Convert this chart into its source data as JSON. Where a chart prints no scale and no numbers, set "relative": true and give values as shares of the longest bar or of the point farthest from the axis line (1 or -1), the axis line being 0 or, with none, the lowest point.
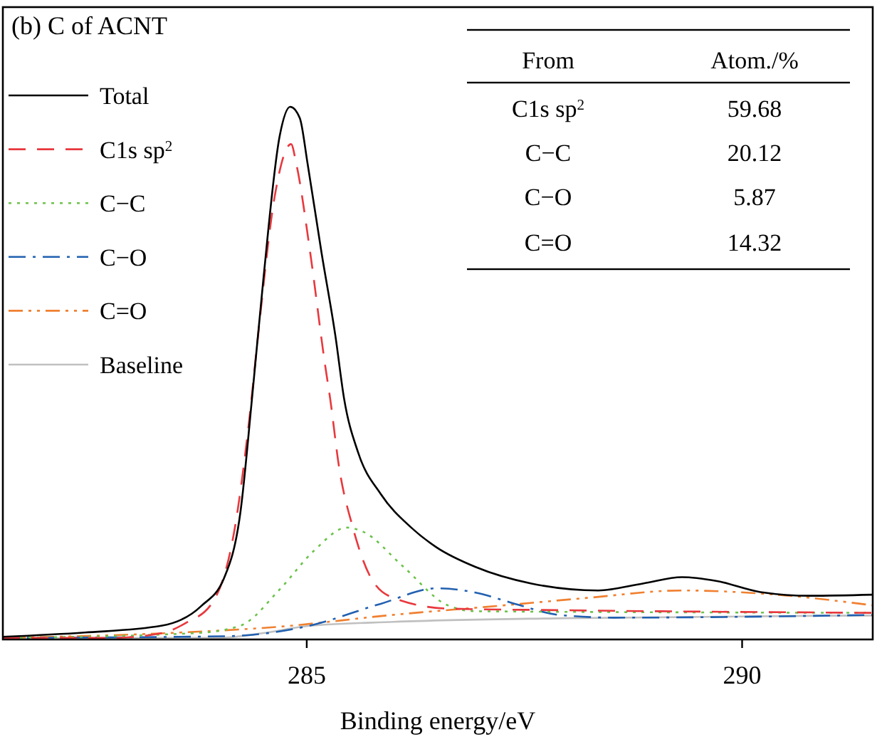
{
  "chart_data": {
    "type": "line",
    "title": "(b) C of ACNT",
    "xlabel": "Binding energy/eV",
    "relative": true,
    "xlim": [
      281.51,
      291.5
    ],
    "xticks": [
      285,
      290
    ],
    "legend": "top left",
    "grid": false,
    "annotations": [
      "From",
      "Atom./%",
      "C1s sp$^{2}$",
      "59.68",
      "C−C",
      "20.12",
      "C−O",
      "5.87",
      "C=O",
      "14.32"
    ],
    "series": [
      {
        "name": "Total",
        "color": "#000000",
        "line_style": "solid",
        "x": [
          281.51,
          282.45,
          283.34,
          283.79,
          284.05,
          284.24,
          284.37,
          284.5,
          284.69,
          284.81,
          284.92,
          285.01,
          285.17,
          285.33,
          285.43,
          285.59,
          285.85,
          286.2,
          286.49,
          286.94,
          287.58,
          288.35,
          288.86,
          289.31,
          289.7,
          290.21,
          290.79,
          291.5
        ],
        "values": [
          0.005,
          0.013,
          0.026,
          0.063,
          0.115,
          0.241,
          0.45,
          0.673,
          0.946,
          1,
          0.979,
          0.893,
          0.726,
          0.569,
          0.451,
          0.351,
          0.273,
          0.21,
          0.173,
          0.136,
          0.105,
          0.092,
          0.105,
          0.117,
          0.11,
          0.089,
          0.082,
          0.084
        ]
      },
      {
        "name": "C1s sp$^{2}$",
        "color": "#e8383d",
        "line_style": "dashed",
        "x": [
          281.51,
          282.77,
          283.34,
          283.6,
          283.92,
          284.18,
          284.34,
          284.44,
          284.63,
          284.82,
          284.88,
          285.04,
          285.21,
          285.27,
          285.37,
          285.53,
          285.72,
          285.98,
          286.62,
          287.9,
          291.5
        ],
        "values": [
          0.003,
          0.003,
          0.012,
          0.03,
          0.07,
          0.215,
          0.413,
          0.569,
          0.83,
          0.93,
          0.893,
          0.726,
          0.516,
          0.451,
          0.325,
          0.21,
          0.121,
          0.079,
          0.058,
          0.055,
          0.05
        ]
      },
      {
        "name": "C−C",
        "color": "#6cc24a",
        "line_style": "dotted",
        "x": [
          281.51,
          283.73,
          284.24,
          284.69,
          285.08,
          285.46,
          285.65,
          286.1,
          286.62,
          286.94,
          291.5
        ],
        "values": [
          0.003,
          0.012,
          0.026,
          0.094,
          0.166,
          0.21,
          0.202,
          0.138,
          0.064,
          0.053,
          0.05
        ]
      },
      {
        "name": "C−O",
        "color": "#2160b0",
        "line_style": "dashdot",
        "x": [
          281.51,
          284.05,
          285.01,
          285.85,
          286.49,
          286.94,
          287.39,
          287.9,
          288.54,
          291.5
        ],
        "values": [
          0.003,
          0.006,
          0.025,
          0.067,
          0.096,
          0.088,
          0.067,
          0.046,
          0.041,
          0.046
        ]
      },
      {
        "name": "C=O",
        "color": "#f08030",
        "line_style": "dashdotdot",
        "x": [
          281.51,
          283.41,
          284.69,
          285.98,
          287.26,
          288.22,
          289.31,
          290.47,
          291.5
        ],
        "values": [
          0.003,
          0.012,
          0.024,
          0.046,
          0.064,
          0.078,
          0.092,
          0.083,
          0.064
        ]
      },
      {
        "name": "Baseline",
        "color": "#c0c0c0",
        "line_style": "solid",
        "x": [
          281.51,
          284.0,
          284.5,
          285.0,
          286.0,
          288.0,
          291.5
        ],
        "values": [
          0.003,
          0.003,
          0.012,
          0.025,
          0.033,
          0.04,
          0.045
        ]
      }
    ]
  }
}
